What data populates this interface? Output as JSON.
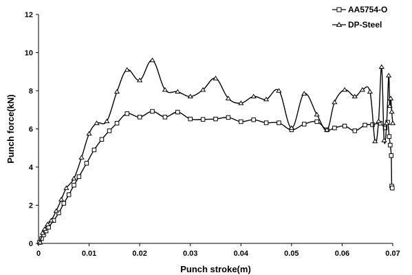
{
  "chart_data": {
    "type": "line",
    "title": "",
    "xlabel": "Punch stroke(m)",
    "ylabel": "Punch force(kN)",
    "xlim": [
      0,
      0.07
    ],
    "ylim": [
      0,
      12
    ],
    "x_ticks": [
      0,
      0.01,
      0.02,
      0.03,
      0.04,
      0.05,
      0.06,
      0.07
    ],
    "x_tick_labels": [
      "0",
      "0.01",
      "0.02",
      "0.03",
      "0.04",
      "0.05",
      "0.06",
      "0.07"
    ],
    "y_ticks": [
      0,
      2,
      4,
      6,
      8,
      10,
      12
    ],
    "y_tick_labels": [
      "0",
      "2",
      "4",
      "6",
      "8",
      "10",
      "12"
    ],
    "grid": false,
    "legend_position": "top-right",
    "series": [
      {
        "name": "AA5754-O",
        "marker": "square",
        "points": [
          [
            0.0002,
            0.05
          ],
          [
            0.0006,
            0.25
          ],
          [
            0.001,
            0.45
          ],
          [
            0.0015,
            0.65
          ],
          [
            0.002,
            0.85
          ],
          [
            0.003,
            1.2
          ],
          [
            0.004,
            1.6
          ],
          [
            0.005,
            2.1
          ],
          [
            0.006,
            2.55
          ],
          [
            0.007,
            3.05
          ],
          [
            0.008,
            3.5
          ],
          [
            0.0095,
            4.2
          ],
          [
            0.011,
            4.9
          ],
          [
            0.0125,
            5.45
          ],
          [
            0.014,
            5.9
          ],
          [
            0.0155,
            6.3
          ],
          [
            0.0175,
            6.8
          ],
          [
            0.02,
            6.62
          ],
          [
            0.0225,
            6.92
          ],
          [
            0.025,
            6.62
          ],
          [
            0.0275,
            6.88
          ],
          [
            0.03,
            6.52
          ],
          [
            0.0325,
            6.5
          ],
          [
            0.035,
            6.52
          ],
          [
            0.0375,
            6.6
          ],
          [
            0.04,
            6.38
          ],
          [
            0.0425,
            6.48
          ],
          [
            0.045,
            6.32
          ],
          [
            0.0475,
            6.32
          ],
          [
            0.05,
            5.95
          ],
          [
            0.0525,
            6.25
          ],
          [
            0.055,
            6.38
          ],
          [
            0.057,
            5.95
          ],
          [
            0.0585,
            6.05
          ],
          [
            0.0605,
            6.15
          ],
          [
            0.0625,
            5.9
          ],
          [
            0.0645,
            6.2
          ],
          [
            0.066,
            6.22
          ],
          [
            0.0675,
            6.3
          ],
          [
            0.0685,
            6.05
          ],
          [
            0.069,
            6.35
          ],
          [
            0.0693,
            5.6
          ],
          [
            0.0695,
            5.15
          ],
          [
            0.0697,
            4.6
          ],
          [
            0.0698,
            3.0
          ],
          [
            0.0699,
            2.9
          ]
        ]
      },
      {
        "name": "DP-Steel",
        "marker": "triangle",
        "points": [
          [
            0.0003,
            0.05
          ],
          [
            0.0008,
            0.55
          ],
          [
            0.0012,
            0.75
          ],
          [
            0.0018,
            1.0
          ],
          [
            0.0025,
            1.2
          ],
          [
            0.0035,
            1.7
          ],
          [
            0.0045,
            2.3
          ],
          [
            0.0055,
            2.9
          ],
          [
            0.007,
            3.4
          ],
          [
            0.0085,
            4.5
          ],
          [
            0.01,
            5.75
          ],
          [
            0.0115,
            6.3
          ],
          [
            0.0135,
            6.4
          ],
          [
            0.0155,
            7.95
          ],
          [
            0.0175,
            9.1
          ],
          [
            0.02,
            8.55
          ],
          [
            0.0225,
            9.6
          ],
          [
            0.025,
            8.05
          ],
          [
            0.0275,
            7.95
          ],
          [
            0.03,
            7.7
          ],
          [
            0.0325,
            8.05
          ],
          [
            0.035,
            8.65
          ],
          [
            0.0375,
            7.6
          ],
          [
            0.04,
            7.35
          ],
          [
            0.0425,
            7.7
          ],
          [
            0.045,
            7.55
          ],
          [
            0.0475,
            8.0
          ],
          [
            0.05,
            6.05
          ],
          [
            0.0525,
            7.85
          ],
          [
            0.055,
            6.75
          ],
          [
            0.057,
            5.95
          ],
          [
            0.0585,
            7.4
          ],
          [
            0.0605,
            8.05
          ],
          [
            0.0625,
            7.7
          ],
          [
            0.064,
            8.05
          ],
          [
            0.0655,
            7.95
          ],
          [
            0.0665,
            5.35
          ],
          [
            0.0672,
            6.4
          ],
          [
            0.0678,
            9.25
          ],
          [
            0.0683,
            5.4
          ],
          [
            0.0688,
            6.3
          ],
          [
            0.0692,
            8.8
          ],
          [
            0.0694,
            7.2
          ],
          [
            0.0696,
            7.6
          ],
          [
            0.0698,
            6.9
          ],
          [
            0.07,
            6.3
          ]
        ]
      }
    ]
  }
}
